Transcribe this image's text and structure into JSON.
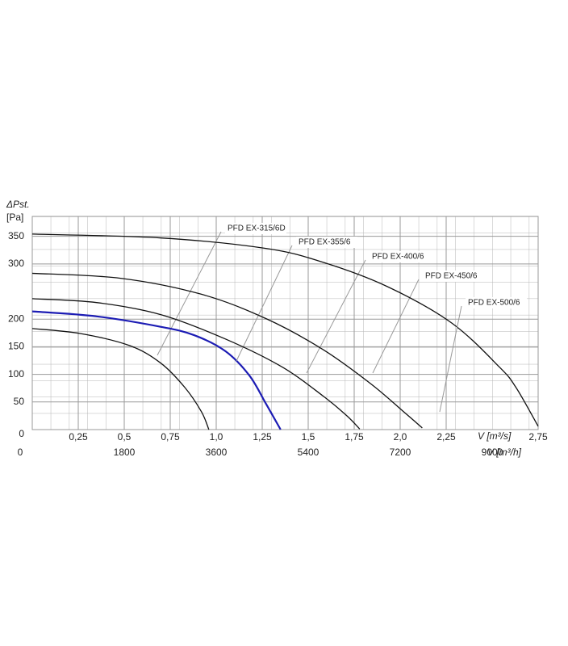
{
  "chart_data": {
    "type": "line",
    "y_title": "ΔPst.",
    "y_unit": "[Pa]",
    "x_title": "V [m³/s]",
    "x2_title": "V [m³/h]",
    "xlim": [
      0,
      2.75
    ],
    "ylim": [
      0,
      386
    ],
    "x2lim": [
      0,
      9900
    ],
    "grid": true,
    "xticks": [
      {
        "value": 0.25,
        "label": "0,25"
      },
      {
        "value": 0.5,
        "label": "0,5"
      },
      {
        "value": 0.75,
        "label": "0,75"
      },
      {
        "value": 1.0,
        "label": "1,0"
      },
      {
        "value": 1.25,
        "label": "1,25"
      },
      {
        "value": 1.5,
        "label": "1,5"
      },
      {
        "value": 1.75,
        "label": "1,75"
      },
      {
        "value": 2.0,
        "label": "2,0"
      },
      {
        "value": 2.25,
        "label": "2,25"
      },
      {
        "value": 2.75,
        "label": "2,75"
      }
    ],
    "x2ticks": [
      0,
      1800,
      3600,
      5400,
      7200,
      9000
    ],
    "yticks": [
      0,
      50,
      100,
      150,
      200,
      300,
      350
    ],
    "series": [
      {
        "name": "PFD EX-315/6D",
        "color": "#111111",
        "x": [
          0,
          0.26,
          0.53,
          0.7,
          0.83,
          0.92,
          0.96
        ],
        "values": [
          183,
          174,
          152,
          120,
          76,
          32,
          0
        ]
      },
      {
        "name": "PFD EX-355/6",
        "color": "#1c1cb4",
        "x": [
          0,
          0.35,
          0.7,
          0.88,
          1.05,
          1.18,
          1.27,
          1.35
        ],
        "values": [
          214,
          205,
          186,
          171,
          142,
          98,
          47,
          0
        ]
      },
      {
        "name": "PFD EX-400/6",
        "color": "#111111",
        "x": [
          0,
          0.35,
          0.7,
          1.05,
          1.36,
          1.58,
          1.71,
          1.78
        ],
        "values": [
          237,
          230,
          208,
          164,
          113,
          61,
          25,
          1
        ]
      },
      {
        "name": "PFD EX-450/6",
        "color": "#111111",
        "x": [
          0,
          0.48,
          0.92,
          1.27,
          1.58,
          1.84,
          2.02,
          2.12
        ],
        "values": [
          283,
          274,
          245,
          201,
          145,
          83,
          32,
          3
        ]
      },
      {
        "name": "PFD EX-500/6",
        "color": "#111111",
        "x": [
          0,
          0.7,
          1.27,
          1.58,
          1.93,
          2.28,
          2.54,
          2.63,
          2.75
        ],
        "values": [
          354,
          347,
          328,
          303,
          259,
          193,
          113,
          76,
          6
        ]
      }
    ]
  }
}
